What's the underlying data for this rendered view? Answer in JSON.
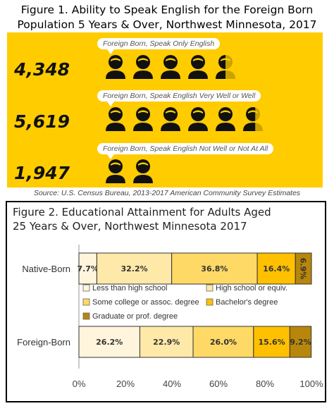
{
  "figure1": {
    "title_line1": "Figure 1. Ability to Speak English for the Foreign Born",
    "title_line2": "Population 5 Years & Over, Northwest Minnesota, 2017",
    "rows": [
      {
        "label": "Foreign Born, Speak Only English",
        "count": "4,348",
        "icons": 4.5
      },
      {
        "label": "Foreign Born, Speak English Very Well or Well",
        "count": "5,619",
        "icons": 5.6
      },
      {
        "label": "Foreign Born, Speak English Not Well or Not At All",
        "count": "1,947",
        "icons": 2.0
      }
    ],
    "source": "Source: U.S. Census Bureau, 2013-2017 American Community Survey Estimates",
    "colors": {
      "panel": "#FFCC00",
      "icon": "#111111",
      "icon_faded": "#C9A200"
    }
  },
  "chart_data": {
    "type": "bar",
    "orientation": "horizontal",
    "stacked": true,
    "title_line1": "Figure 2. Educational Attainment for Adults Aged",
    "title_line2": "25 Years & Over, Northwest Minnesota 2017",
    "categories": [
      "Native-Born",
      "Foreign-Born"
    ],
    "series": [
      {
        "name": "Less than high school",
        "values": [
          7.7,
          26.2
        ],
        "labels": [
          "7.7%",
          "26.2%"
        ],
        "color": "#FFF5DC"
      },
      {
        "name": "High school or equiv.",
        "values": [
          32.2,
          22.9
        ],
        "labels": [
          "32.2%",
          "22.9%"
        ],
        "color": "#FFE9A8"
      },
      {
        "name": "Some college or assoc. degree",
        "values": [
          36.8,
          26.0
        ],
        "labels": [
          "36.8%",
          "26.0%"
        ],
        "color": "#FFD966"
      },
      {
        "name": "Bachelor's degree",
        "values": [
          16.4,
          15.6
        ],
        "labels": [
          "16.4%",
          "15.6%"
        ],
        "color": "#FFC000"
      },
      {
        "name": "Graduate or prof. degree",
        "values": [
          6.9,
          9.2
        ],
        "labels": [
          "6.9%",
          "9.2%"
        ],
        "color": "#B8860B"
      }
    ],
    "xlim": [
      0,
      100
    ],
    "xticks": [
      "0%",
      "20%",
      "40%",
      "60%",
      "80%",
      "100%"
    ],
    "legend_position": "between bars"
  }
}
